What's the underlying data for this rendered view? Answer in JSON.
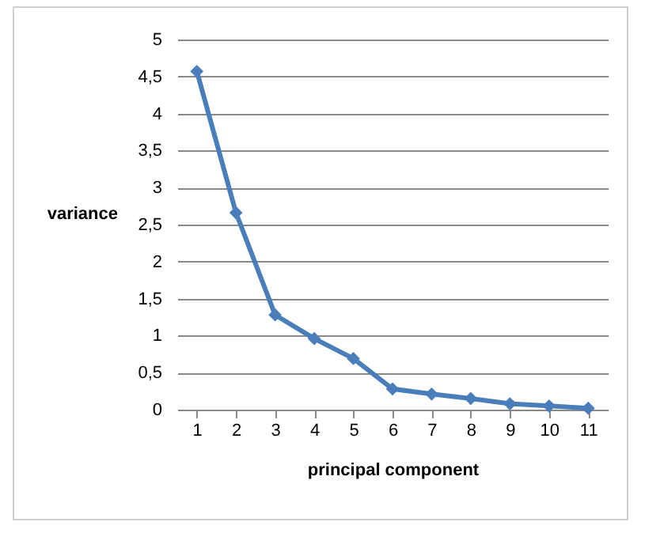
{
  "chart_data": {
    "type": "line",
    "xlabel": "principal component",
    "ylabel": "variance",
    "categories": [
      "1",
      "2",
      "3",
      "4",
      "5",
      "6",
      "7",
      "8",
      "9",
      "10",
      "11"
    ],
    "series": [
      {
        "color": "#4a7ebb",
        "values": [
          4.57,
          2.66,
          1.28,
          0.96,
          0.69,
          0.28,
          0.21,
          0.15,
          0.08,
          0.05,
          0.02
        ]
      }
    ],
    "ylim": [
      0,
      5
    ],
    "yticks": [
      0,
      {
        "value": 0.5,
        "label": "0,5"
      },
      1,
      {
        "value": 1.5,
        "label": "1,5"
      },
      2,
      {
        "value": 2.5,
        "label": "2,5"
      },
      3,
      {
        "value": 3.5,
        "label": "3,5"
      },
      4,
      {
        "value": 4.5,
        "label": "4,5"
      },
      5
    ],
    "grid": "y",
    "marker": "diamond",
    "line_style": "solid"
  }
}
